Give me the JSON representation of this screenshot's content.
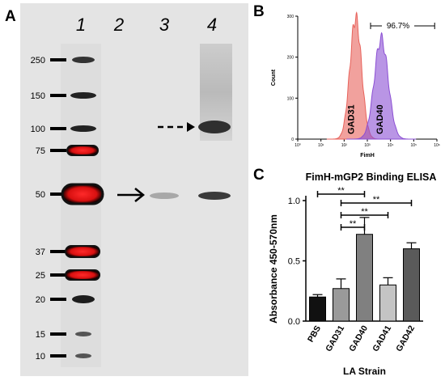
{
  "panels": {
    "a": "A",
    "b": "B",
    "c": "C"
  },
  "western_blot": {
    "lane_labels": [
      "1",
      "2",
      "3",
      "4"
    ],
    "marker_labels": [
      "250",
      "150",
      "100",
      "75",
      "50",
      "37",
      "25",
      "20",
      "15",
      "10"
    ]
  },
  "chart_data": [
    {
      "type": "area",
      "xlabel": "FimH",
      "ylabel": "Count",
      "yticks": [
        "0",
        "100",
        "200",
        "300"
      ],
      "xticks": [
        "10⁰",
        "10¹",
        "10²",
        "10³",
        "10⁴",
        "10⁵",
        "10⁶"
      ],
      "x_scale": "log",
      "gate_label": "96.7%",
      "series": [
        {
          "name": "GAD31",
          "color": "#e8625b",
          "peak_x": 316,
          "peak_count": 295
        },
        {
          "name": "GAD40",
          "color": "#8b4fd3",
          "peak_x": 3981,
          "peak_count": 245
        }
      ]
    },
    {
      "type": "bar",
      "title": "FimH-mGP2 Binding ELISA",
      "xlabel": "LA Strain",
      "ylabel": "Absorbance 450-570nm",
      "ylim": [
        0,
        1.0
      ],
      "yticks": [
        "0.0",
        "0.5",
        "1.0"
      ],
      "categories": [
        "PBS",
        "GAD31",
        "GAD40",
        "GAD41",
        "GAD42"
      ],
      "values": [
        0.2,
        0.27,
        0.72,
        0.3,
        0.6
      ],
      "errors": [
        0.02,
        0.08,
        0.14,
        0.06,
        0.05
      ],
      "colors": [
        "#111111",
        "#9a9a9a",
        "#808080",
        "#c4c4c4",
        "#5a5a5a"
      ],
      "significance": [
        {
          "from": 0,
          "to": 2,
          "label": "**"
        },
        {
          "from": 1,
          "to": 4,
          "label": "**"
        },
        {
          "from": 1,
          "to": 3,
          "label": "**"
        },
        {
          "from": 1,
          "to": 2,
          "label": "**"
        }
      ]
    }
  ]
}
